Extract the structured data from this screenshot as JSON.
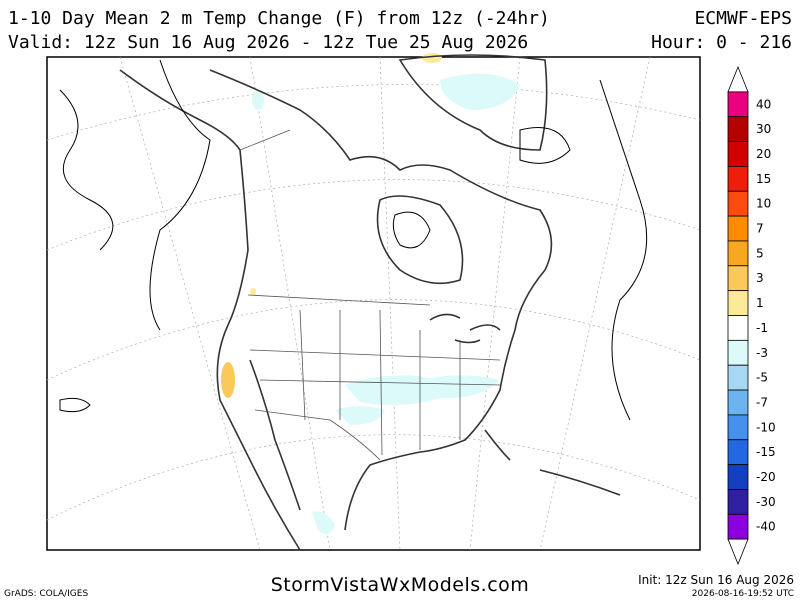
{
  "header": {
    "title": "1-10 Day Mean 2 m Temp Change (F) from 12z (-24hr)",
    "model": "ECMWF-EPS",
    "valid": "Valid: 12z Sun 16 Aug 2026 - 12z Tue 25 Aug 2026",
    "hours": "Hour: 0 - 216"
  },
  "colorbar": {
    "labels": [
      40,
      30,
      20,
      15,
      10,
      7,
      5,
      3,
      1,
      -1,
      -3,
      -5,
      -7,
      -10,
      -15,
      -20,
      -30,
      -40
    ],
    "colors": [
      "#ffffff",
      "#e8007f",
      "#b40000",
      "#d20000",
      "#ee1e0a",
      "#ff4a10",
      "#ff8c00",
      "#f8a820",
      "#fcc85a",
      "#fcea98",
      "#ffffff",
      "#dcfafa",
      "#a6d8f4",
      "#6cb4f0",
      "#4490ea",
      "#2468e0",
      "#1440c0",
      "#3020a0",
      "#8c00e0",
      "#ffffff"
    ]
  },
  "footer": {
    "credit": "GrADS: COLA/IGES",
    "site": "StormVistaWxModels.com",
    "init": "Init: 12z Sun 16 Aug 2026",
    "stamp": "2026-08-16-19:52 UTC"
  }
}
